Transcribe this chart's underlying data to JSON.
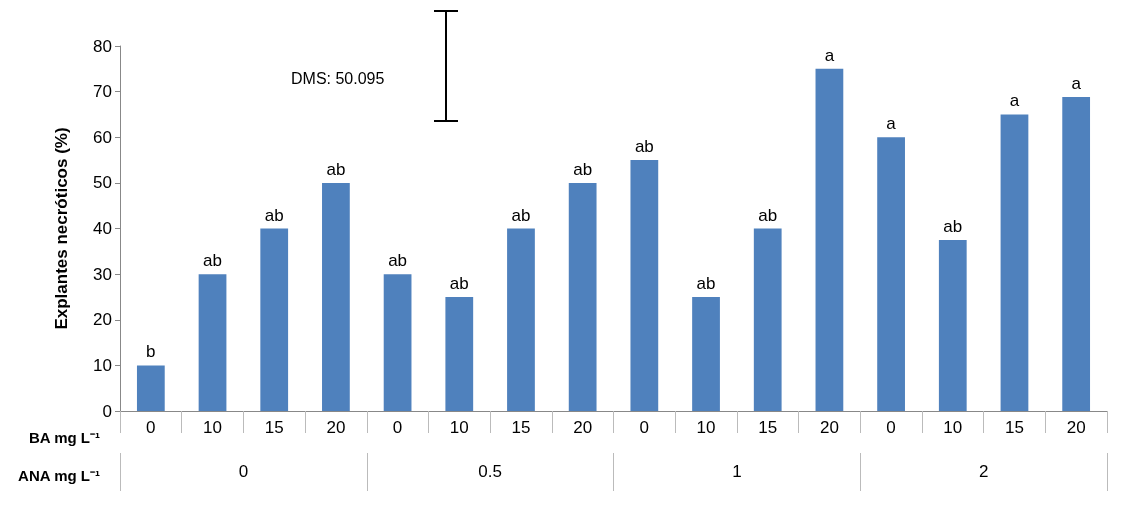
{
  "chart_data": {
    "type": "bar",
    "ylabel": "Explantes necróticos (%)",
    "xlabel": "BA mg L⁻¹",
    "categories": [
      "0",
      "10",
      "15",
      "20",
      "0",
      "10",
      "15",
      "20",
      "0",
      "10",
      "15",
      "20",
      "0",
      "10",
      "15",
      "20"
    ],
    "values": [
      10,
      30,
      40,
      50,
      30,
      25,
      40,
      50,
      55,
      25,
      40,
      75,
      60,
      37.5,
      65,
      68.8
    ],
    "value_labels": [
      "b",
      "ab",
      "ab",
      "ab",
      "ab",
      "ab",
      "ab",
      "ab",
      "ab",
      "ab",
      "ab",
      "a",
      "a",
      "ab",
      "a",
      "a"
    ],
    "color": "#4f81bd",
    "ylim": [
      0,
      80
    ],
    "yticks": [
      0,
      10,
      20,
      30,
      40,
      50,
      60,
      70,
      80
    ],
    "grid": false,
    "annotations": [
      "DMS: 50.095",
      "ANA mg L⁻¹",
      "0",
      "0.5",
      "1",
      "2"
    ]
  }
}
